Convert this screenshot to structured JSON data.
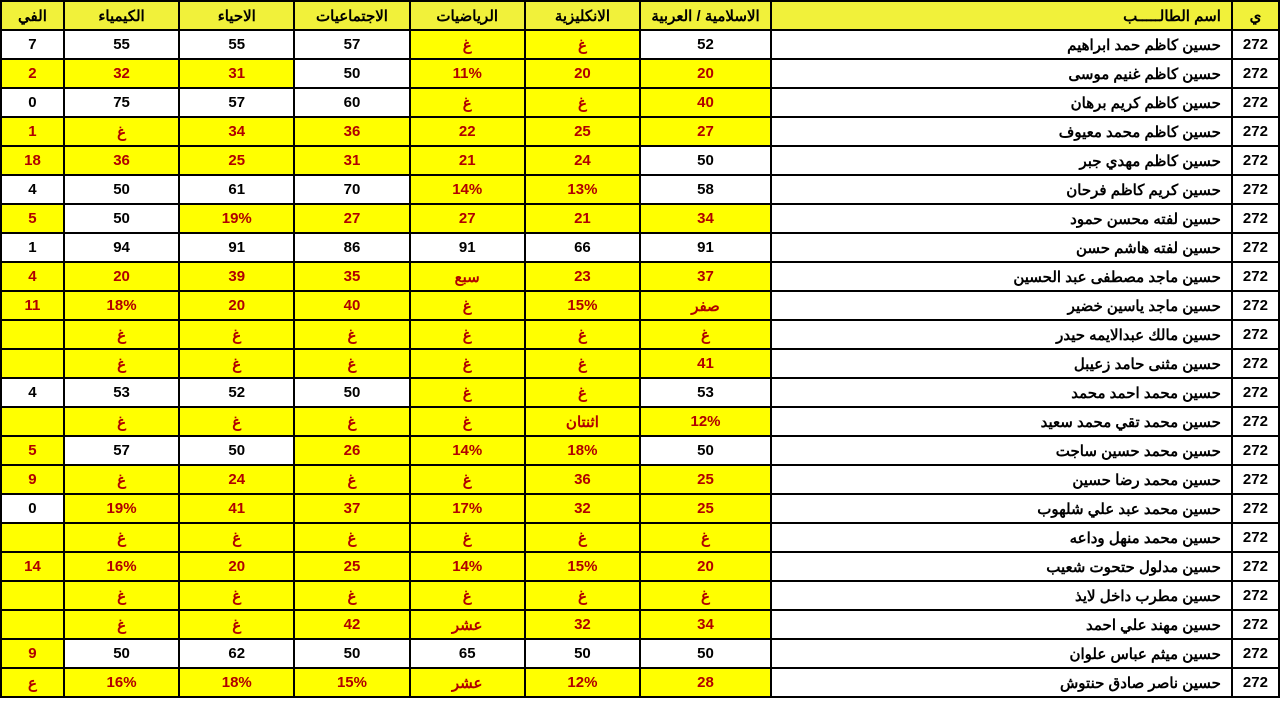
{
  "headers": [
    "ي",
    "اسم الطالـــــب",
    "الاسلامية / العربية",
    "الانكليزية",
    "الرياضيات",
    "الاجتماعيات",
    "الاحياء",
    "الكيمياء",
    "الفي"
  ],
  "colClasses": [
    "col-id",
    "col-name",
    "col-islamic",
    "col-subj",
    "col-subj",
    "col-subj",
    "col-subj",
    "col-subj",
    "col-subj-last"
  ],
  "rows": [
    {
      "id": "272",
      "name": "حسين كاظم حمد ابراهيم",
      "cells": [
        {
          "v": "52",
          "hl": false
        },
        {
          "v": "غ",
          "hl": true
        },
        {
          "v": "غ",
          "hl": true
        },
        {
          "v": "57",
          "hl": false
        },
        {
          "v": "55",
          "hl": false
        },
        {
          "v": "55",
          "hl": false
        },
        {
          "v": "7",
          "hl": false
        }
      ]
    },
    {
      "id": "272",
      "name": "حسين كاظم غنيم موسى",
      "cells": [
        {
          "v": "20",
          "hl": true
        },
        {
          "v": "20",
          "hl": true
        },
        {
          "v": "11%",
          "hl": true
        },
        {
          "v": "50",
          "hl": false
        },
        {
          "v": "31",
          "hl": true
        },
        {
          "v": "32",
          "hl": true
        },
        {
          "v": "2",
          "hl": true
        }
      ]
    },
    {
      "id": "272",
      "name": "حسين كاظم كريم برهان",
      "cells": [
        {
          "v": "40",
          "hl": true
        },
        {
          "v": "غ",
          "hl": true
        },
        {
          "v": "غ",
          "hl": true
        },
        {
          "v": "60",
          "hl": false
        },
        {
          "v": "57",
          "hl": false
        },
        {
          "v": "75",
          "hl": false
        },
        {
          "v": "0",
          "hl": false
        }
      ]
    },
    {
      "id": "272",
      "name": "حسين كاظم محمد معيوف",
      "cells": [
        {
          "v": "27",
          "hl": true
        },
        {
          "v": "25",
          "hl": true
        },
        {
          "v": "22",
          "hl": true
        },
        {
          "v": "36",
          "hl": true
        },
        {
          "v": "34",
          "hl": true
        },
        {
          "v": "غ",
          "hl": true
        },
        {
          "v": "1",
          "hl": true
        }
      ]
    },
    {
      "id": "272",
      "name": "حسين كاظم مهدي جبر",
      "cells": [
        {
          "v": "50",
          "hl": false
        },
        {
          "v": "24",
          "hl": true
        },
        {
          "v": "21",
          "hl": true
        },
        {
          "v": "31",
          "hl": true
        },
        {
          "v": "25",
          "hl": true
        },
        {
          "v": "36",
          "hl": true
        },
        {
          "v": "18",
          "hl": true
        }
      ]
    },
    {
      "id": "272",
      "name": "حسين كريم كاظم فرحان",
      "cells": [
        {
          "v": "58",
          "hl": false
        },
        {
          "v": "13%",
          "hl": true
        },
        {
          "v": "14%",
          "hl": true
        },
        {
          "v": "70",
          "hl": false
        },
        {
          "v": "61",
          "hl": false
        },
        {
          "v": "50",
          "hl": false
        },
        {
          "v": "4",
          "hl": false
        }
      ]
    },
    {
      "id": "272",
      "name": "حسين لفته محسن حمود",
      "cells": [
        {
          "v": "34",
          "hl": true
        },
        {
          "v": "21",
          "hl": true
        },
        {
          "v": "27",
          "hl": true
        },
        {
          "v": "27",
          "hl": true
        },
        {
          "v": "19%",
          "hl": true
        },
        {
          "v": "50",
          "hl": false
        },
        {
          "v": "5",
          "hl": true
        }
      ]
    },
    {
      "id": "272",
      "name": "حسين لفته هاشم حسن",
      "cells": [
        {
          "v": "91",
          "hl": false
        },
        {
          "v": "66",
          "hl": false
        },
        {
          "v": "91",
          "hl": false
        },
        {
          "v": "86",
          "hl": false
        },
        {
          "v": "91",
          "hl": false
        },
        {
          "v": "94",
          "hl": false
        },
        {
          "v": "1",
          "hl": false
        }
      ]
    },
    {
      "id": "272",
      "name": "حسين ماجد مصطفى عبد الحسين",
      "cells": [
        {
          "v": "37",
          "hl": true
        },
        {
          "v": "23",
          "hl": true
        },
        {
          "v": "سبع",
          "hl": true
        },
        {
          "v": "35",
          "hl": true
        },
        {
          "v": "39",
          "hl": true
        },
        {
          "v": "20",
          "hl": true
        },
        {
          "v": "4",
          "hl": true
        }
      ]
    },
    {
      "id": "272",
      "name": "حسين ماجد ياسين خضير",
      "cells": [
        {
          "v": "صفر",
          "hl": true
        },
        {
          "v": "15%",
          "hl": true
        },
        {
          "v": "غ",
          "hl": true
        },
        {
          "v": "40",
          "hl": true
        },
        {
          "v": "20",
          "hl": true
        },
        {
          "v": "18%",
          "hl": true
        },
        {
          "v": "11",
          "hl": true
        }
      ]
    },
    {
      "id": "272",
      "name": "حسين مالك عبدالايمه حيدر",
      "cells": [
        {
          "v": "غ",
          "hl": true
        },
        {
          "v": "غ",
          "hl": true
        },
        {
          "v": "غ",
          "hl": true
        },
        {
          "v": "غ",
          "hl": true
        },
        {
          "v": "غ",
          "hl": true
        },
        {
          "v": "غ",
          "hl": true
        },
        {
          "v": "",
          "hl": true
        }
      ]
    },
    {
      "id": "272",
      "name": "حسين مثنى حامد زعيبل",
      "cells": [
        {
          "v": "41",
          "hl": true
        },
        {
          "v": "غ",
          "hl": true
        },
        {
          "v": "غ",
          "hl": true
        },
        {
          "v": "غ",
          "hl": true
        },
        {
          "v": "غ",
          "hl": true
        },
        {
          "v": "غ",
          "hl": true
        },
        {
          "v": "",
          "hl": true
        }
      ]
    },
    {
      "id": "272",
      "name": "حسين محمد احمد محمد",
      "cells": [
        {
          "v": "53",
          "hl": false
        },
        {
          "v": "غ",
          "hl": true
        },
        {
          "v": "غ",
          "hl": true
        },
        {
          "v": "50",
          "hl": false
        },
        {
          "v": "52",
          "hl": false
        },
        {
          "v": "53",
          "hl": false
        },
        {
          "v": "4",
          "hl": false
        }
      ]
    },
    {
      "id": "272",
      "name": "حسين محمد تقي محمد سعيد",
      "cells": [
        {
          "v": "12%",
          "hl": true
        },
        {
          "v": "اثنتان",
          "hl": true
        },
        {
          "v": "غ",
          "hl": true
        },
        {
          "v": "غ",
          "hl": true
        },
        {
          "v": "غ",
          "hl": true
        },
        {
          "v": "غ",
          "hl": true
        },
        {
          "v": "",
          "hl": true
        }
      ]
    },
    {
      "id": "272",
      "name": "حسين محمد حسين ساجت",
      "cells": [
        {
          "v": "50",
          "hl": false
        },
        {
          "v": "18%",
          "hl": true
        },
        {
          "v": "14%",
          "hl": true
        },
        {
          "v": "26",
          "hl": true
        },
        {
          "v": "50",
          "hl": false
        },
        {
          "v": "57",
          "hl": false
        },
        {
          "v": "5",
          "hl": true
        }
      ]
    },
    {
      "id": "272",
      "name": "حسين محمد رضا حسين",
      "cells": [
        {
          "v": "25",
          "hl": true
        },
        {
          "v": "36",
          "hl": true
        },
        {
          "v": "غ",
          "hl": true
        },
        {
          "v": "غ",
          "hl": true
        },
        {
          "v": "24",
          "hl": true
        },
        {
          "v": "غ",
          "hl": true
        },
        {
          "v": "9",
          "hl": true
        }
      ]
    },
    {
      "id": "272",
      "name": "حسين محمد عبد علي شلهوب",
      "cells": [
        {
          "v": "25",
          "hl": true
        },
        {
          "v": "32",
          "hl": true
        },
        {
          "v": "17%",
          "hl": true
        },
        {
          "v": "37",
          "hl": true
        },
        {
          "v": "41",
          "hl": true
        },
        {
          "v": "19%",
          "hl": true
        },
        {
          "v": "0",
          "hl": false
        }
      ]
    },
    {
      "id": "272",
      "name": "حسين محمد منهل وداعه",
      "cells": [
        {
          "v": "غ",
          "hl": true
        },
        {
          "v": "غ",
          "hl": true
        },
        {
          "v": "غ",
          "hl": true
        },
        {
          "v": "غ",
          "hl": true
        },
        {
          "v": "غ",
          "hl": true
        },
        {
          "v": "غ",
          "hl": true
        },
        {
          "v": "",
          "hl": true
        }
      ]
    },
    {
      "id": "272",
      "name": "حسين مدلول حتحوت شعيب",
      "cells": [
        {
          "v": "20",
          "hl": true
        },
        {
          "v": "15%",
          "hl": true
        },
        {
          "v": "14%",
          "hl": true
        },
        {
          "v": "25",
          "hl": true
        },
        {
          "v": "20",
          "hl": true
        },
        {
          "v": "16%",
          "hl": true
        },
        {
          "v": "14",
          "hl": true
        }
      ]
    },
    {
      "id": "272",
      "name": "حسين مطرب داخل لايذ",
      "cells": [
        {
          "v": "غ",
          "hl": true
        },
        {
          "v": "غ",
          "hl": true
        },
        {
          "v": "غ",
          "hl": true
        },
        {
          "v": "غ",
          "hl": true
        },
        {
          "v": "غ",
          "hl": true
        },
        {
          "v": "غ",
          "hl": true
        },
        {
          "v": "",
          "hl": true
        }
      ]
    },
    {
      "id": "272",
      "name": "حسين مهند علي احمد",
      "cells": [
        {
          "v": "34",
          "hl": true
        },
        {
          "v": "32",
          "hl": true
        },
        {
          "v": "عشر",
          "hl": true
        },
        {
          "v": "42",
          "hl": true
        },
        {
          "v": "غ",
          "hl": true
        },
        {
          "v": "غ",
          "hl": true
        },
        {
          "v": "",
          "hl": true
        }
      ]
    },
    {
      "id": "272",
      "name": "حسين ميثم عباس علوان",
      "cells": [
        {
          "v": "50",
          "hl": false
        },
        {
          "v": "50",
          "hl": false
        },
        {
          "v": "65",
          "hl": false
        },
        {
          "v": "50",
          "hl": false
        },
        {
          "v": "62",
          "hl": false
        },
        {
          "v": "50",
          "hl": false
        },
        {
          "v": "9",
          "hl": true
        }
      ]
    },
    {
      "id": "272",
      "name": "حسين ناصر صادق حنتوش",
      "cells": [
        {
          "v": "28",
          "hl": true
        },
        {
          "v": "12%",
          "hl": true
        },
        {
          "v": "عشر",
          "hl": true
        },
        {
          "v": "15%",
          "hl": true
        },
        {
          "v": "18%",
          "hl": true
        },
        {
          "v": "16%",
          "hl": true
        },
        {
          "v": "ع",
          "hl": true
        }
      ]
    }
  ]
}
